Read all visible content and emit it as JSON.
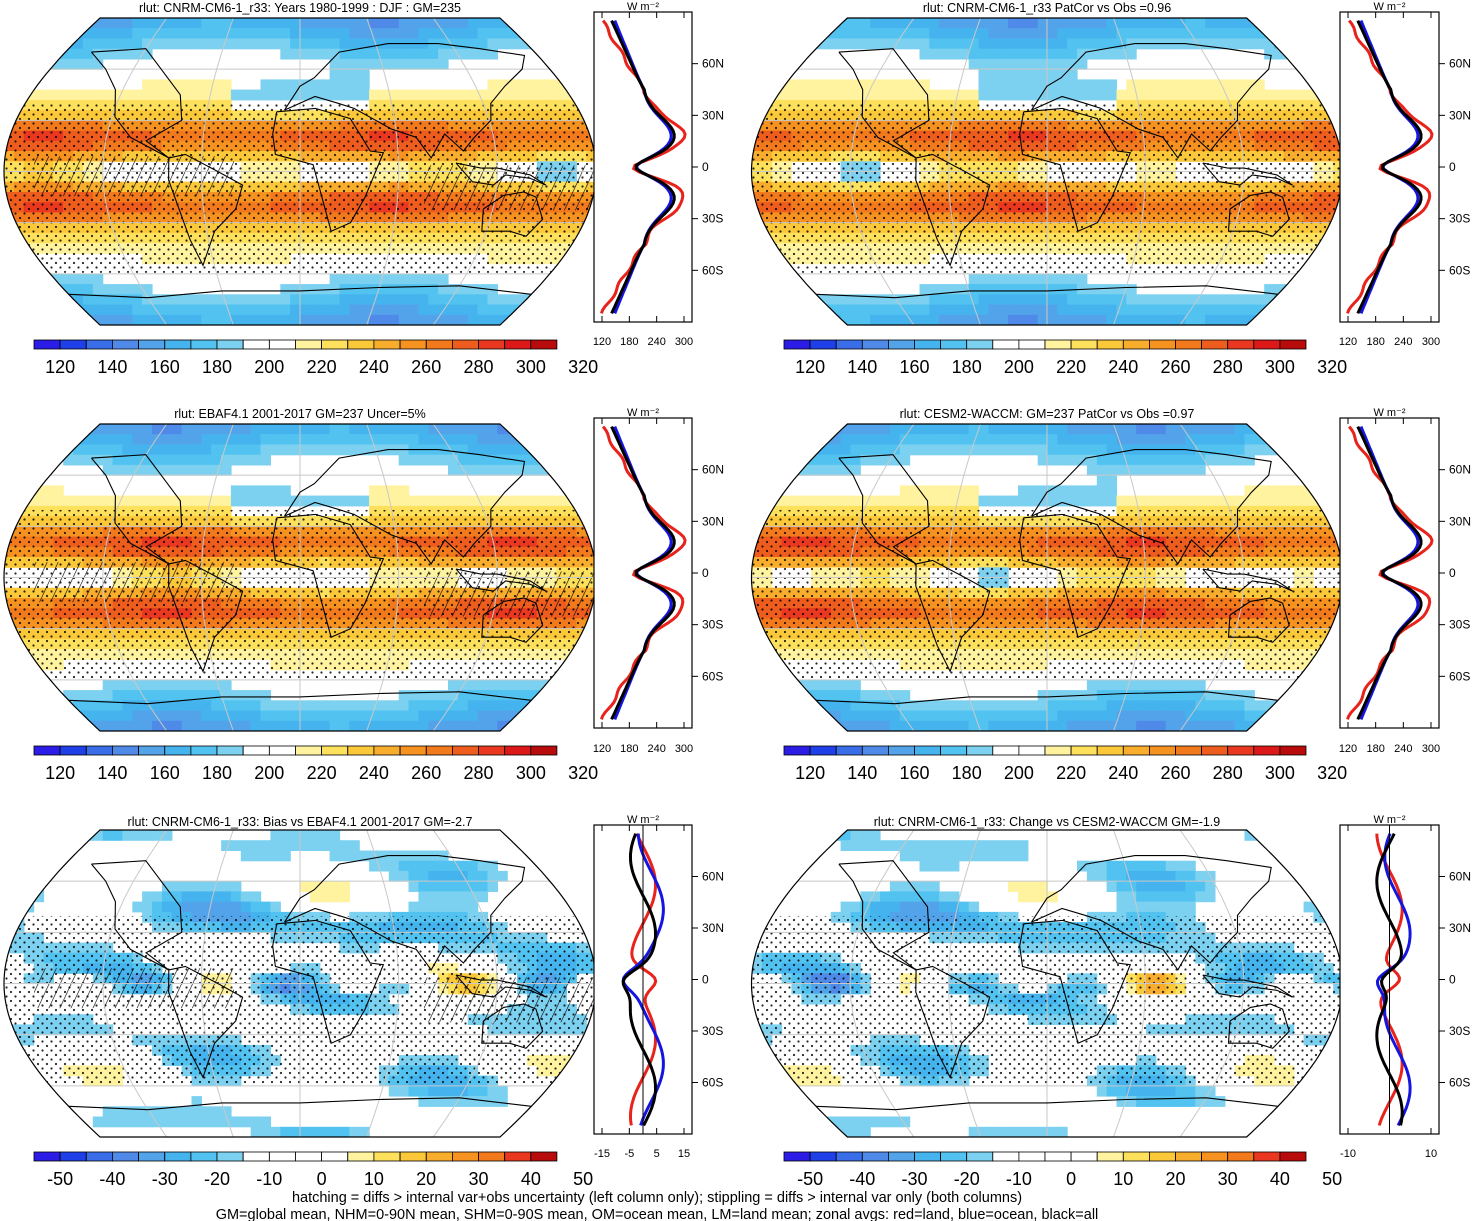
{
  "chart_data": [
    {
      "type": "map",
      "title": "rlut: CNRM-CM6-1_r33: Years 1980-1999 : DJF : GM=235",
      "colorbar": {
        "ticks": [
          "120",
          "140",
          "160",
          "180",
          "200",
          "220",
          "240",
          "260",
          "280",
          "300",
          "320"
        ]
      },
      "zonal": {
        "xticks": [
          "120",
          "180",
          "240",
          "300"
        ],
        "ylabels": [
          "60N",
          "30N",
          "0",
          "30S",
          "60S"
        ],
        "unit": "W m⁻²"
      }
    },
    {
      "type": "map",
      "title": "rlut: CNRM-CM6-1_r33 PatCor vs Obs =0.96",
      "colorbar": {
        "ticks": [
          "120",
          "140",
          "160",
          "180",
          "200",
          "220",
          "240",
          "260",
          "280",
          "300",
          "320"
        ]
      },
      "zonal": {
        "xticks": [
          "120",
          "180",
          "240",
          "300"
        ],
        "ylabels": [
          "60N",
          "30N",
          "0",
          "30S",
          "60S"
        ],
        "unit": "W m⁻²"
      }
    },
    {
      "type": "map",
      "title": "rlut: EBAF4.1 2001-2017 GM=237 Uncer=5%",
      "colorbar": {
        "ticks": [
          "120",
          "140",
          "160",
          "180",
          "200",
          "220",
          "240",
          "260",
          "280",
          "300",
          "320"
        ]
      },
      "zonal": {
        "xticks": [
          "120",
          "180",
          "240",
          "300"
        ],
        "ylabels": [
          "60N",
          "30N",
          "0",
          "30S",
          "60S"
        ],
        "unit": "W m⁻²"
      }
    },
    {
      "type": "map",
      "title": "rlut: CESM2-WACCM: GM=237 PatCor vs Obs =0.97",
      "colorbar": {
        "ticks": [
          "120",
          "140",
          "160",
          "180",
          "200",
          "220",
          "240",
          "260",
          "280",
          "300",
          "320"
        ]
      },
      "zonal": {
        "xticks": [
          "120",
          "180",
          "240",
          "300"
        ],
        "ylabels": [
          "60N",
          "30N",
          "0",
          "30S",
          "60S"
        ],
        "unit": "W m⁻²"
      }
    },
    {
      "type": "map",
      "title": "rlut: CNRM-CM6-1_r33: Bias vs EBAF4.1 2001-2017 GM=-2.7",
      "colorbar": {
        "ticks": [
          "-50",
          "-40",
          "-30",
          "-20",
          "-10",
          "0",
          "10",
          "20",
          "30",
          "40",
          "50"
        ]
      },
      "zonal": {
        "xticks": [
          "-15",
          "-5",
          "5",
          "15"
        ],
        "ylabels": [
          "60N",
          "30N",
          "0",
          "30S",
          "60S"
        ],
        "unit": "W m⁻²"
      }
    },
    {
      "type": "map",
      "title": "rlut: CNRM-CM6-1_r33: Change vs CESM2-WACCM GM=-1.9",
      "colorbar": {
        "ticks": [
          "-50",
          "-40",
          "-30",
          "-20",
          "-10",
          "0",
          "10",
          "20",
          "30",
          "40",
          "50"
        ]
      },
      "zonal": {
        "xticks": [
          "-10",
          "10"
        ],
        "ylabels": [
          "60N",
          "30N",
          "0",
          "30S",
          "60S"
        ],
        "unit": "W m⁻²"
      }
    }
  ],
  "colors": {
    "abs_palette": [
      "#2b1ce6",
      "#1f3fe8",
      "#3a6ee8",
      "#4f8ae8",
      "#53a3ea",
      "#45b4ee",
      "#52c3f0",
      "#7dd1f0",
      "#ffffff",
      "#ffffff",
      "#fff3a0",
      "#fde05b",
      "#fbc83a",
      "#f9ad2d",
      "#f6921f",
      "#f27a1d",
      "#ee5d1d",
      "#e9381f",
      "#dc1818",
      "#b80b0b"
    ],
    "diff_palette": [
      "#2b1ce6",
      "#1f3fe8",
      "#3a6ee8",
      "#4f8ae8",
      "#53a3ea",
      "#45b4ee",
      "#52c3f0",
      "#7dd1f0",
      "#ffffff",
      "#ffffff",
      "#ffffff",
      "#ffffff",
      "#fff3a0",
      "#fde05b",
      "#fbc83a",
      "#f9ad2d",
      "#f6921f",
      "#f27a1d",
      "#e9381f",
      "#b80b0b"
    ],
    "land": "#e8231c",
    "ocean": "#1515e0",
    "all": "#000000"
  },
  "footnote": {
    "line1": "hatching = diffs > internal var+obs uncertainty (left column only); stippling = diffs > internal var only (both columns)",
    "line2": "GM=global mean, NHM=0-90N mean, SHM=0-90S mean, OM=ocean mean, LM=land mean; zonal avgs: red=land, blue=ocean, black=all"
  }
}
